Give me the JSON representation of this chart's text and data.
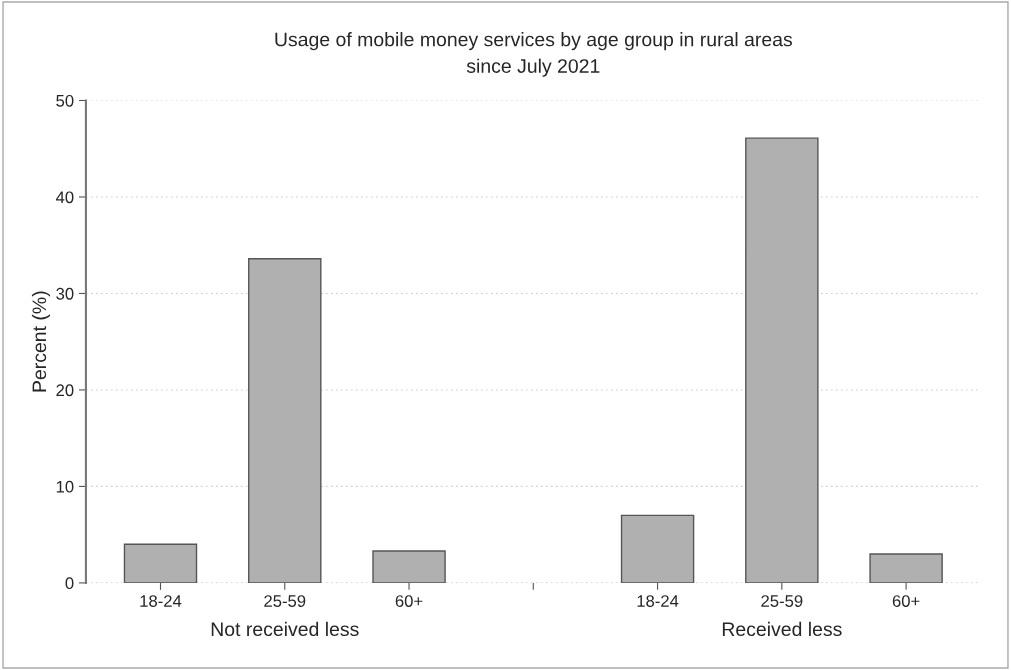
{
  "chart_data": {
    "type": "bar",
    "title": "Usage of mobile money services by age group in rural areas\nsince July 2021",
    "ylabel": "Percent (%)",
    "categories": [
      "18-24",
      "25-59",
      "60+",
      null,
      "18-24",
      "25-59",
      "60+"
    ],
    "values": [
      4.0,
      33.6,
      3.3,
      null,
      7.0,
      46.1,
      3.0
    ],
    "color": "#b0b0b0",
    "ylim": [
      0,
      50
    ],
    "yticks": [
      0,
      10,
      20,
      30,
      40,
      50
    ],
    "grid": "y",
    "annotations": [
      "Not received less",
      "Received less"
    ]
  }
}
